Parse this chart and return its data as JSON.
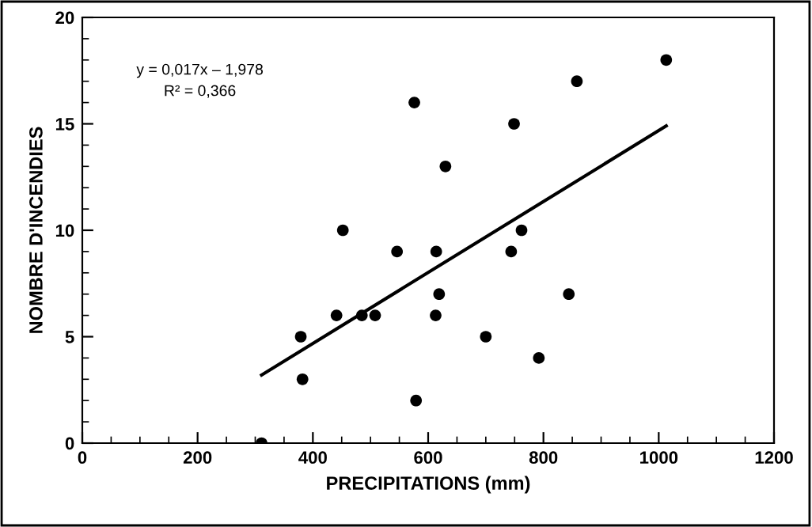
{
  "chart_data": {
    "type": "scatter",
    "xlabel": "PRECIPITATIONS (mm)",
    "ylabel": "NOMBRE D'INCENDIES",
    "annotations": [
      "y = 0,017x – 1,978",
      "R² = 0,366"
    ],
    "series": [
      {
        "color": "#000000",
        "marker": "circle",
        "x": [
          311,
          379,
          382,
          441,
          452,
          485,
          508,
          546,
          576,
          579,
          614,
          619,
          613,
          630,
          700,
          744,
          749,
          762,
          792,
          844,
          858,
          1013
        ],
        "values": [
          0,
          5,
          3,
          6,
          10,
          6,
          6,
          9,
          16,
          2,
          9,
          7,
          6,
          13,
          5,
          9,
          15,
          10,
          4,
          7,
          17,
          18
        ]
      },
      {
        "type": "line",
        "marker": "none",
        "color": "#000000",
        "x": [
          311,
          1013
        ],
        "values": [
          3.2,
          14.9
        ]
      }
    ],
    "grid": false,
    "legend": false,
    "xlim": [
      0,
      1200
    ],
    "xticks": [
      0,
      200,
      400,
      600,
      800,
      1000,
      1200
    ],
    "ylim": [
      0,
      20
    ],
    "yticks": [
      0,
      5,
      10,
      15,
      20
    ]
  }
}
